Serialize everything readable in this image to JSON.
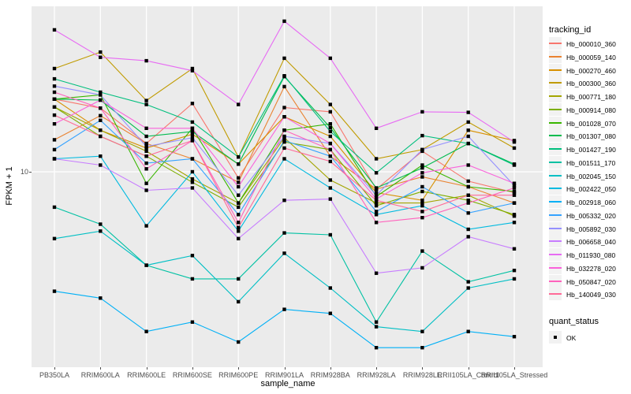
{
  "figure": {
    "panel_bg": "#EBEBEB",
    "grid_color": "#FFFFFF",
    "point_color": "#000000"
  },
  "axes": {
    "x_title": "sample_name",
    "y_title": "FPKM + 1",
    "y_tick_label": "10"
  },
  "legend": {
    "tracking_title": "tracking_id",
    "quant_title": "quant_status",
    "quant_items": [
      "OK"
    ]
  },
  "chart_data": {
    "type": "line",
    "xlabel": "sample_name",
    "ylabel": "FPKM + 1",
    "yscale": "log10",
    "yticks": [
      10
    ],
    "grid": true,
    "legend_position": "right",
    "quant_status": "OK",
    "categories": [
      "PB350LA",
      "RRIM600LA",
      "RRIM600LE",
      "RRIM600SE",
      "RRIM600PE",
      "RRIM901LA",
      "RRIM928BA",
      "RRIM928LA",
      "RRIM928LE",
      "RRII105LA_Control",
      "RRII105LA_Stressed"
    ],
    "series": [
      {
        "name": "Hb_000010_360",
        "color": "#F8766D",
        "values": [
          20.8,
          19.0,
          13.3,
          19.9,
          9.4,
          19.1,
          18.3,
          8.4,
          12.3,
          9.1,
          8.1
        ]
      },
      {
        "name": "Hb_000059_140",
        "color": "#EA8331",
        "values": [
          13.8,
          17.6,
          13.3,
          11.4,
          9.0,
          23.6,
          11.7,
          8.4,
          9.5,
          8.6,
          7.3
        ]
      },
      {
        "name": "Hb_000270_460",
        "color": "#D89000",
        "values": [
          20.8,
          15.2,
          12.7,
          14.6,
          10.8,
          17.4,
          14.3,
          8.1,
          7.5,
          15.2,
          13.7
        ]
      },
      {
        "name": "Hb_000300_360",
        "color": "#C09B00",
        "values": [
          28.3,
          33.4,
          20.5,
          28.3,
          11.6,
          31.4,
          19.7,
          11.4,
          12.5,
          16.5,
          12.7
        ]
      },
      {
        "name": "Hb_000771_180",
        "color": "#A3A500",
        "values": [
          19.2,
          15.2,
          12.3,
          9.3,
          7.3,
          14.1,
          9.2,
          7.3,
          7.3,
          7.9,
          6.4
        ]
      },
      {
        "name": "Hb_000914_080",
        "color": "#7CAE00",
        "values": [
          19.2,
          14.3,
          11.7,
          9.0,
          7.0,
          13.5,
          12.5,
          7.1,
          8.2,
          7.5,
          6.5
        ]
      },
      {
        "name": "Hb_001028_070",
        "color": "#39B600",
        "values": [
          20.8,
          21.7,
          8.9,
          15.5,
          7.3,
          15.2,
          16.2,
          7.8,
          10.7,
          8.6,
          8.2
        ]
      },
      {
        "name": "Hb_001307_080",
        "color": "#00BB4E",
        "values": [
          20.8,
          20.6,
          14.3,
          15.0,
          10.8,
          26.1,
          15.6,
          8.5,
          10.4,
          13.3,
          10.8
        ]
      },
      {
        "name": "Hb_001427_190",
        "color": "#00BF7D",
        "values": [
          25.5,
          22.3,
          19.7,
          16.5,
          11.6,
          26.3,
          15.0,
          9.9,
          14.4,
          13.3,
          10.7
        ]
      },
      {
        "name": "Hb_001511_170",
        "color": "#00C1A3",
        "values": [
          7.0,
          5.9,
          3.9,
          3.4,
          3.4,
          5.4,
          5.3,
          2.2,
          4.5,
          3.3,
          3.7
        ]
      },
      {
        "name": "Hb_002045_150",
        "color": "#00BFC4",
        "values": [
          5.1,
          5.5,
          3.9,
          4.3,
          2.7,
          4.4,
          3.1,
          2.1,
          2.0,
          3.1,
          3.4
        ]
      },
      {
        "name": "Hb_002422_050",
        "color": "#00BAE0",
        "values": [
          11.4,
          11.7,
          5.8,
          10.0,
          5.5,
          11.4,
          8.5,
          6.5,
          7.1,
          5.6,
          6.0
        ]
      },
      {
        "name": "Hb_002918_060",
        "color": "#00B0F6",
        "values": [
          3.0,
          2.8,
          2.0,
          2.2,
          1.8,
          2.5,
          2.4,
          1.7,
          1.7,
          2.0,
          1.9
        ]
      },
      {
        "name": "Hb_005332_020",
        "color": "#35A2FF",
        "values": [
          12.5,
          16.8,
          10.9,
          11.4,
          6.5,
          13.7,
          11.7,
          6.7,
          8.6,
          6.6,
          7.3
        ]
      },
      {
        "name": "Hb_005892_030",
        "color": "#9590FF",
        "values": [
          23.7,
          21.7,
          12.9,
          14.1,
          7.9,
          14.3,
          13.3,
          7.9,
          12.5,
          14.3,
          8.7
        ]
      },
      {
        "name": "Hb_006658_040",
        "color": "#C77CFF",
        "values": [
          11.4,
          10.7,
          8.3,
          8.5,
          5.1,
          7.5,
          7.6,
          3.6,
          3.8,
          5.2,
          4.6
        ]
      },
      {
        "name": "Hb_011930_080",
        "color": "#E76BF3",
        "values": [
          41.8,
          31.7,
          30.6,
          27.7,
          19.7,
          45.6,
          31.4,
          15.5,
          18.3,
          18.2,
          13.5
        ]
      },
      {
        "name": "Hb_032278_020",
        "color": "#FA62DB",
        "values": [
          16.2,
          20.6,
          15.5,
          15.5,
          8.6,
          17.4,
          13.3,
          7.6,
          9.9,
          10.7,
          8.9
        ]
      },
      {
        "name": "Hb_050847_020",
        "color": "#FF62BC",
        "values": [
          22.3,
          19.0,
          10.3,
          13.7,
          6.0,
          15.2,
          12.5,
          6.0,
          6.3,
          7.3,
          8.5
        ]
      },
      {
        "name": "Hb_140049_030",
        "color": "#FF6A98",
        "values": [
          17.7,
          14.3,
          11.7,
          13.7,
          5.7,
          12.7,
          11.1,
          7.5,
          6.7,
          7.9,
          7.9
        ]
      }
    ]
  }
}
